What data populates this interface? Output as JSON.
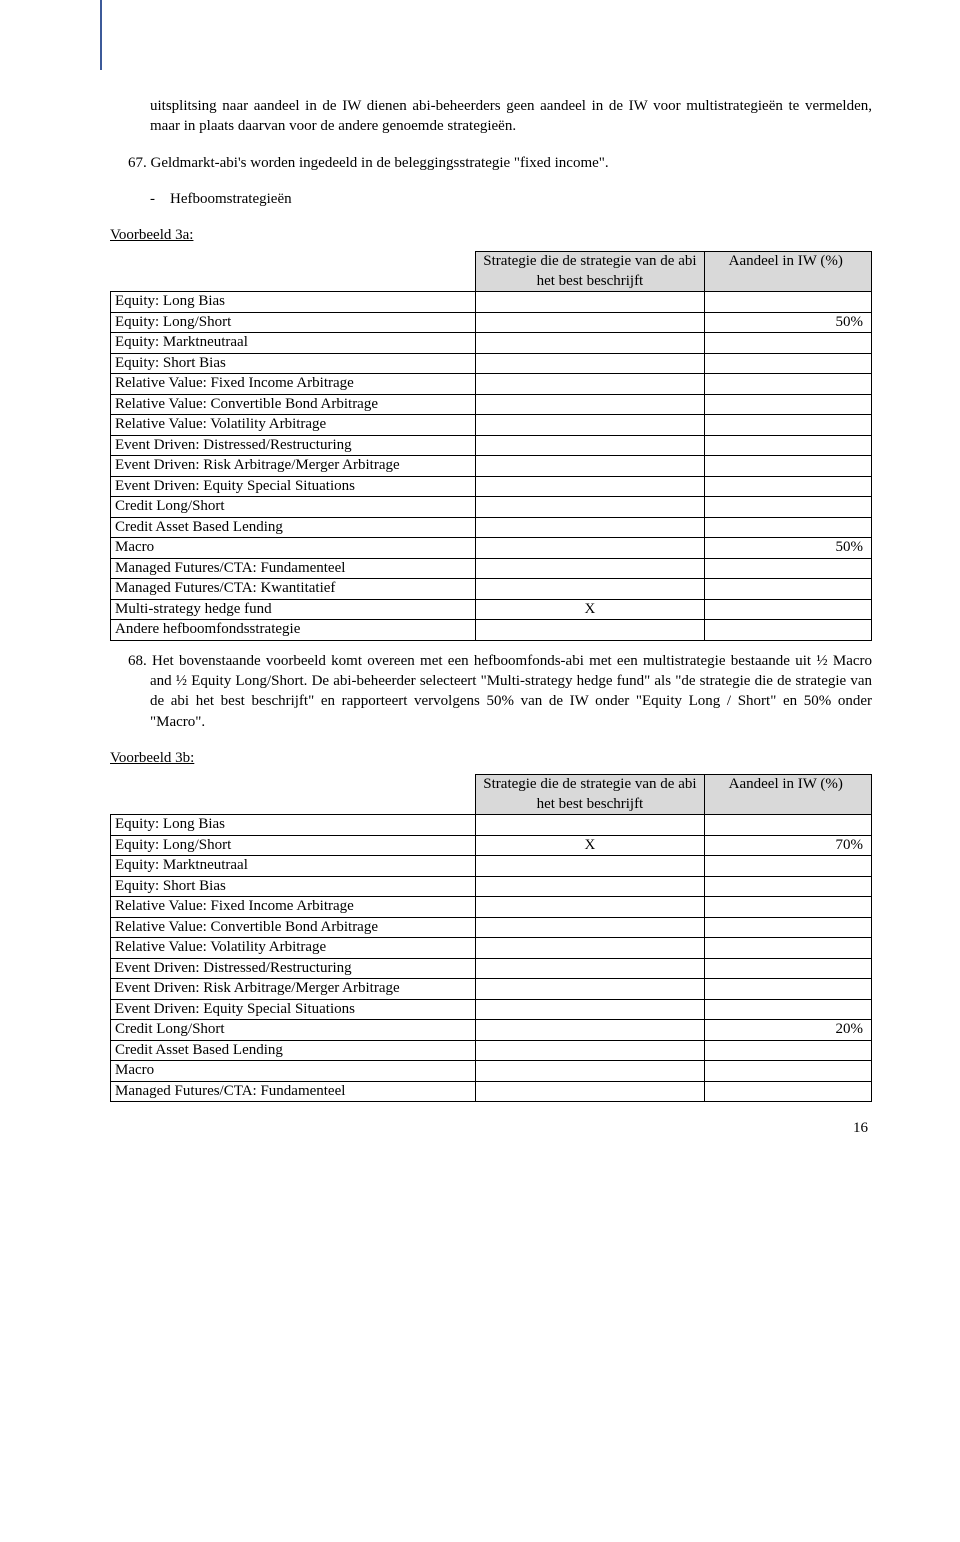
{
  "colors": {
    "header_rule": "#3c5a99",
    "table_header_bg": "#d9d9d9",
    "text": "#000000",
    "background": "#ffffff"
  },
  "para1": "uitsplitsing naar aandeel in de IW dienen abi-beheerders geen aandeel in de IW voor multistrategieën te vermelden, maar in plaats daarvan voor de andere genoemde strategieën.",
  "para2_num": "67.",
  "para2": "Geldmarkt-abi's worden ingedeeld in de beleggingsstrategie \"fixed income\".",
  "bullet_dash": "-",
  "bullet_text": "Hefboomstrategieën",
  "ex3a_label": "Voorbeeld 3a:",
  "table_header_mid": "Strategie die de strategie van de abi het best beschrijft",
  "table_header_right": "Aandeel in IW (%)",
  "rows_a": [
    {
      "label": "Equity: Long Bias",
      "mid": "",
      "right": ""
    },
    {
      "label": "Equity: Long/Short",
      "mid": "",
      "right": "50%"
    },
    {
      "label": "Equity: Marktneutraal",
      "mid": "",
      "right": ""
    },
    {
      "label": "Equity: Short Bias",
      "mid": "",
      "right": ""
    },
    {
      "label": "Relative Value: Fixed Income Arbitrage",
      "mid": "",
      "right": ""
    },
    {
      "label": "Relative Value: Convertible Bond Arbitrage",
      "mid": "",
      "right": ""
    },
    {
      "label": "Relative Value: Volatility Arbitrage",
      "mid": "",
      "right": ""
    },
    {
      "label": "Event Driven: Distressed/Restructuring",
      "mid": "",
      "right": ""
    },
    {
      "label": "Event Driven: Risk Arbitrage/Merger Arbitrage",
      "mid": "",
      "right": "",
      "justify": true
    },
    {
      "label": "Event Driven: Equity Special Situations",
      "mid": "",
      "right": ""
    },
    {
      "label": "Credit Long/Short",
      "mid": "",
      "right": ""
    },
    {
      "label": "Credit Asset Based Lending",
      "mid": "",
      "right": ""
    },
    {
      "label": "Macro",
      "mid": "",
      "right": "50%"
    },
    {
      "label": "Managed Futures/CTA: Fundamenteel",
      "mid": "",
      "right": ""
    },
    {
      "label": "Managed Futures/CTA: Kwantitatief",
      "mid": "",
      "right": ""
    },
    {
      "label": "Multi-strategy hedge fund",
      "mid": "X",
      "right": ""
    },
    {
      "label": "Andere hefboomfondsstrategie",
      "mid": "",
      "right": ""
    }
  ],
  "para68_num": "68.",
  "para68": "Het bovenstaande voorbeeld komt overeen met een hefboomfonds-abi met een multistrategie bestaande uit ½ Macro and ½ Equity Long/Short. De abi-beheerder selecteert \"Multi-strategy hedge fund\" als \"de strategie die de strategie van de abi het best beschrijft\" en rapporteert vervolgens 50% van de IW onder \"Equity Long / Short\" en 50% onder \"Macro\".",
  "ex3b_label": "Voorbeeld 3b:",
  "rows_b": [
    {
      "label": "Equity: Long Bias",
      "mid": "",
      "right": ""
    },
    {
      "label": "Equity: Long/Short",
      "mid": "X",
      "right": "70%"
    },
    {
      "label": "Equity: Marktneutraal",
      "mid": "",
      "right": ""
    },
    {
      "label": "Equity: Short Bias",
      "mid": "",
      "right": ""
    },
    {
      "label": "Relative Value: Fixed Income Arbitrage",
      "mid": "",
      "right": ""
    },
    {
      "label": "Relative Value: Convertible Bond Arbitrage",
      "mid": "",
      "right": ""
    },
    {
      "label": "Relative Value: Volatility Arbitrage",
      "mid": "",
      "right": ""
    },
    {
      "label": "Event Driven: Distressed/Restructuring",
      "mid": "",
      "right": ""
    },
    {
      "label": "Event Driven: Risk Arbitrage/Merger Arbitrage",
      "mid": "",
      "right": "",
      "justify": true
    },
    {
      "label": "Event Driven: Equity Special Situations",
      "mid": "",
      "right": ""
    },
    {
      "label": "Credit Long/Short",
      "mid": "",
      "right": "20%"
    },
    {
      "label": "Credit Asset Based Lending",
      "mid": "",
      "right": ""
    },
    {
      "label": "Macro",
      "mid": "",
      "right": ""
    },
    {
      "label": "Managed Futures/CTA: Fundamenteel",
      "mid": "",
      "right": ""
    }
  ],
  "page_number": "16"
}
